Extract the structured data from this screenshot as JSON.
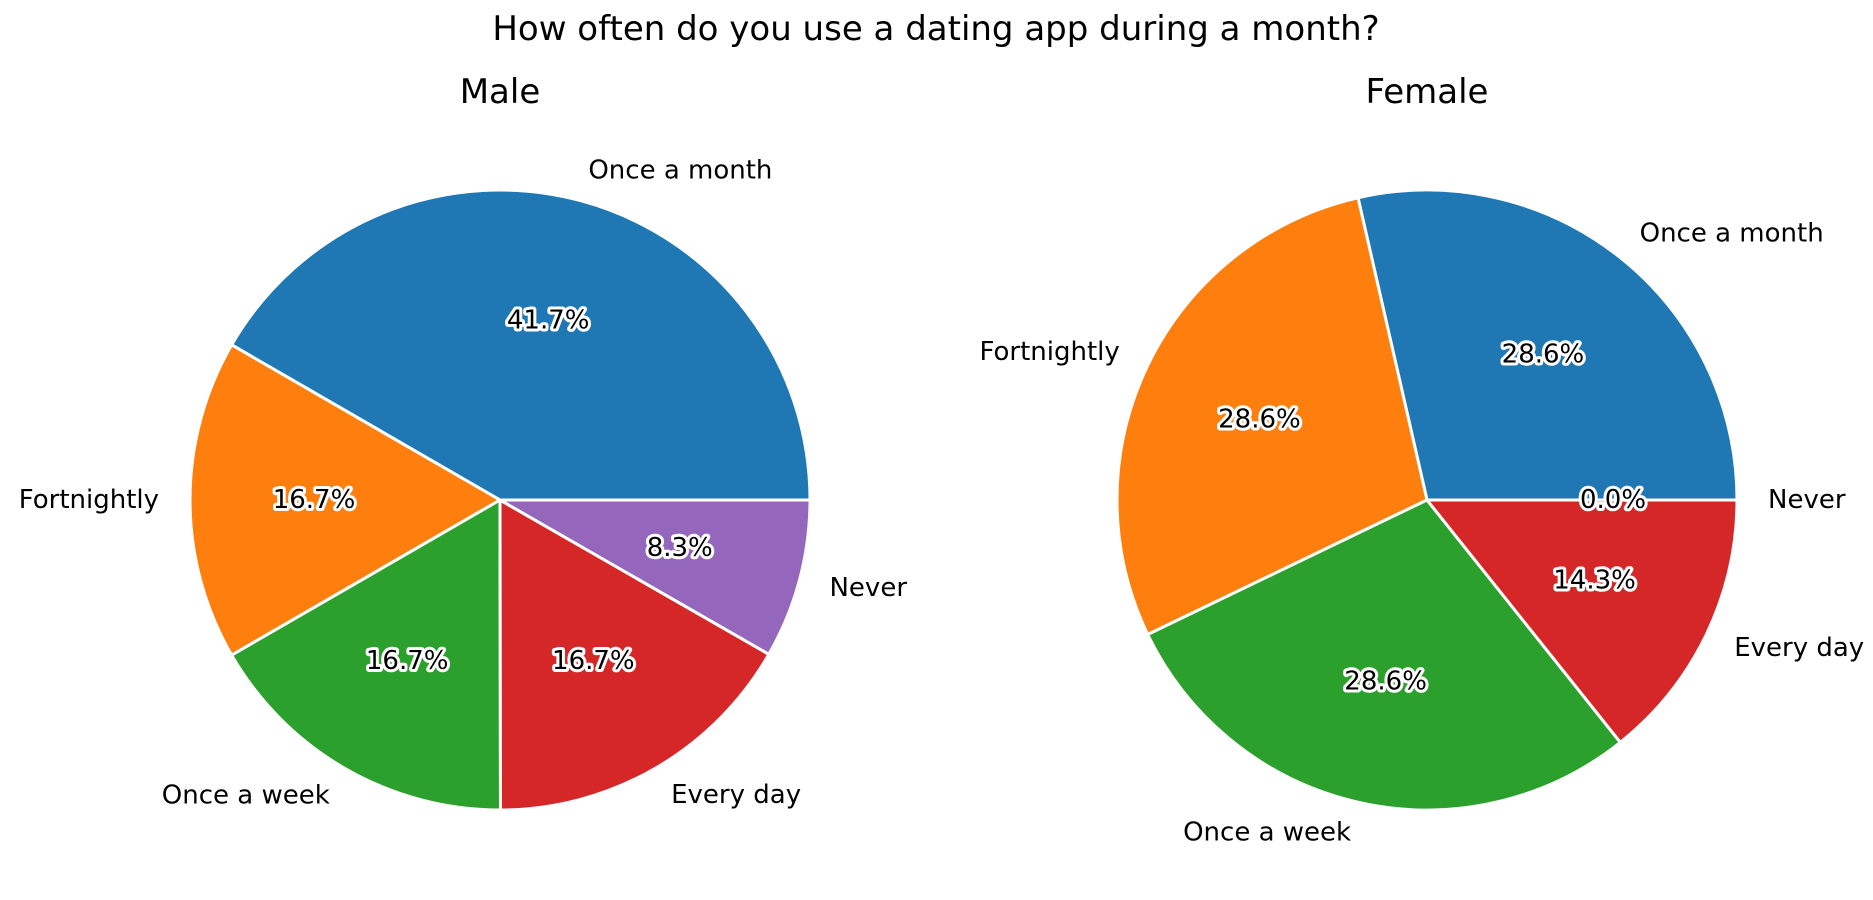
{
  "suptitle": "How often do you use a dating app during a month?",
  "chart_data": [
    {
      "type": "pie",
      "title": "Male",
      "labels": [
        "Once a month",
        "Fortnightly",
        "Once a week",
        "Every day",
        "Never"
      ],
      "values": [
        41.7,
        16.7,
        16.7,
        16.7,
        8.3
      ],
      "pct_labels": [
        "41.7%",
        "16.7%",
        "16.7%",
        "16.7%",
        "8.3%"
      ],
      "colors": [
        "#1f77b4",
        "#ff7f0e",
        "#2ca02c",
        "#d62728",
        "#9467bd"
      ],
      "start_angle_deg": 0,
      "direction": "counterclockwise"
    },
    {
      "type": "pie",
      "title": "Female",
      "labels": [
        "Once a month",
        "Fortnightly",
        "Once a week",
        "Every day",
        "Never"
      ],
      "values": [
        28.6,
        28.6,
        28.6,
        14.3,
        0.0
      ],
      "pct_labels": [
        "28.6%",
        "28.6%",
        "28.6%",
        "14.3%",
        "0.0%"
      ],
      "colors": [
        "#1f77b4",
        "#ff7f0e",
        "#2ca02c",
        "#d62728",
        "#9467bd"
      ],
      "start_angle_deg": 0,
      "direction": "counterclockwise"
    }
  ]
}
